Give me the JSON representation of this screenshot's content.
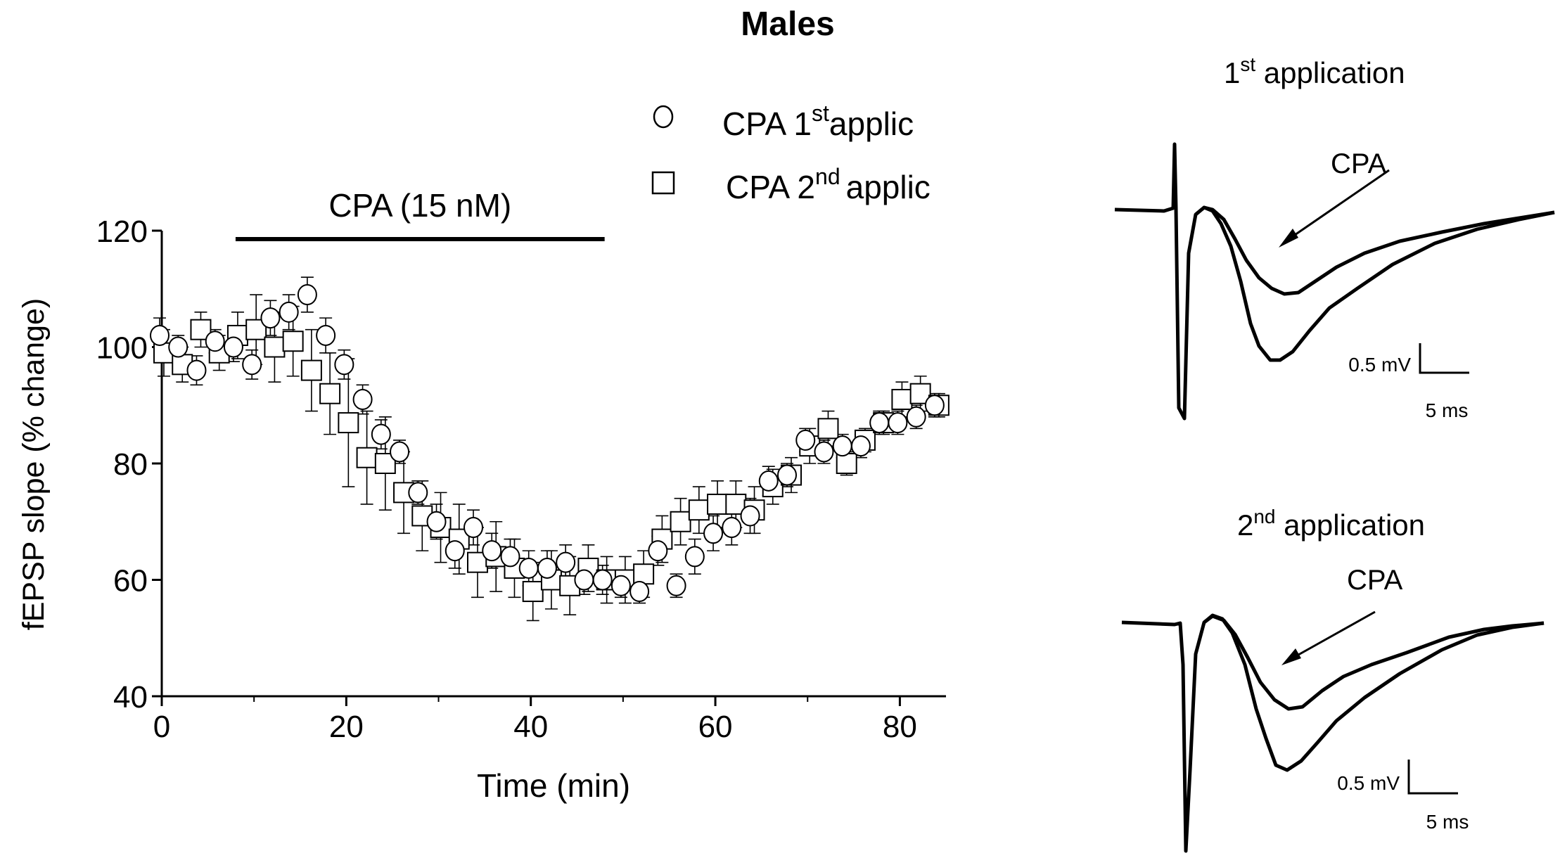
{
  "figure_title": "Males",
  "chart_data": {
    "type": "scatter",
    "title": "Males",
    "xlabel": "Time (min)",
    "ylabel": "fEPSP slope (% change)",
    "xlim": [
      0,
      85
    ],
    "ylim": [
      40,
      120
    ],
    "x_ticks": [
      0,
      20,
      40,
      60,
      80
    ],
    "y_ticks": [
      40,
      60,
      80,
      100,
      120
    ],
    "grid": false,
    "drug_bar": {
      "label": "CPA (15 nM)",
      "start": 8,
      "end": 48
    },
    "legend": {
      "position": "top",
      "entries": [
        {
          "name": "CPA",
          "ordinal": "1",
          "sup": "st",
          "suffix": "applic",
          "marker": "circle"
        },
        {
          "name": "CPA",
          "ordinal": "2",
          "sup": "nd",
          "suffix": "applic",
          "marker": "square"
        }
      ]
    },
    "series": [
      {
        "name": "CPA 1st applic",
        "marker": "circle",
        "x": [
          0,
          2,
          4,
          6,
          8,
          10,
          12,
          14,
          16,
          18,
          20,
          22,
          24,
          26,
          28,
          30,
          32,
          34,
          36,
          38,
          40,
          42,
          44,
          46,
          48,
          50,
          52,
          54,
          56,
          58,
          60,
          62,
          64,
          66,
          68,
          70,
          72,
          74,
          76,
          78,
          80,
          82,
          84
        ],
        "values": [
          102,
          100,
          96,
          101,
          100,
          97,
          105,
          106,
          109,
          102,
          97,
          91,
          85,
          82,
          75,
          70,
          65,
          69,
          65,
          64,
          62,
          62,
          63,
          60,
          60,
          59,
          58,
          65,
          59,
          64,
          68,
          69,
          71,
          77,
          78,
          84,
          82,
          83,
          83,
          87,
          87,
          88,
          90
        ],
        "errors": [
          3,
          2,
          2.5,
          2,
          2.5,
          2.5,
          3,
          3,
          3,
          3,
          2.5,
          2.5,
          2.5,
          2,
          2,
          3,
          3,
          3,
          3,
          3,
          3,
          3,
          3,
          2.5,
          2.5,
          2,
          2,
          2.5,
          2,
          3,
          3,
          3,
          3,
          2.5,
          2,
          2,
          2,
          2,
          2,
          2,
          2,
          2,
          2
        ]
      },
      {
        "name": "CPA 2nd applic",
        "marker": "square",
        "x": [
          0,
          2,
          4,
          6,
          8,
          10,
          12,
          14,
          16,
          18,
          20,
          22,
          24,
          26,
          28,
          30,
          32,
          34,
          36,
          38,
          40,
          42,
          44,
          46,
          48,
          50,
          52,
          54,
          56,
          58,
          60,
          62,
          64,
          66,
          68,
          70,
          72,
          74,
          76,
          78,
          80,
          82,
          84
        ],
        "values": [
          99,
          97,
          103,
          99,
          102,
          103,
          100,
          101,
          96,
          92,
          87,
          81,
          80,
          75,
          71,
          69,
          67,
          63,
          64,
          62,
          58,
          60,
          59,
          62,
          60,
          60,
          61,
          67,
          70,
          72,
          73,
          73,
          72,
          76,
          78,
          83,
          86,
          80,
          84,
          87,
          91,
          92,
          90
        ],
        "errors": [
          4,
          3,
          3,
          3,
          4,
          6,
          6,
          6,
          7,
          7,
          11,
          8,
          8,
          7,
          6,
          6,
          6,
          6,
          6,
          5,
          5,
          5,
          5,
          4,
          4,
          4,
          4,
          4,
          4,
          4,
          4,
          4,
          4,
          3,
          3,
          3,
          3,
          2,
          2,
          2,
          3,
          3,
          2
        ]
      }
    ]
  },
  "traces": [
    {
      "heading_ordinal": "1",
      "heading_sup": "st",
      "heading_rest": " application",
      "arrow_label": "CPA",
      "scale_voltage": "0.5 mV",
      "scale_time": "5 ms"
    },
    {
      "heading_ordinal": "2",
      "heading_sup": "nd",
      "heading_rest": " application",
      "arrow_label": "CPA",
      "scale_voltage": "0.5 mV",
      "scale_time": "5 ms"
    }
  ]
}
